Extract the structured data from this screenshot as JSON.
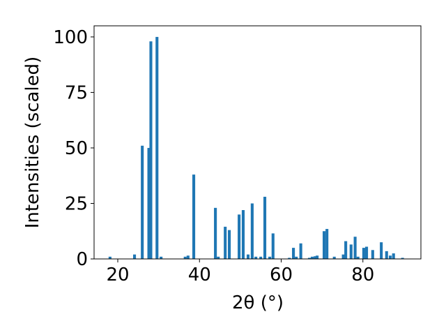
{
  "chart_data": {
    "type": "bar",
    "xlabel": "2θ (°)",
    "ylabel": "Intensities (scaled)",
    "x": [
      18.1,
      24.1,
      26.0,
      27.6,
      28.1,
      29.6,
      30.6,
      36.5,
      37.2,
      38.6,
      43.9,
      44.6,
      46.3,
      47.3,
      49.7,
      50.7,
      51.9,
      52.9,
      53.8,
      55.0,
      56.0,
      57.2,
      58.0,
      62.0,
      63.0,
      63.7,
      64.8,
      66.9,
      67.6,
      68.3,
      68.8,
      70.5,
      71.2,
      73.0,
      75.2,
      75.8,
      77.1,
      78.1,
      78.8,
      80.2,
      80.9,
      82.4,
      84.5,
      85.8,
      86.7,
      87.5,
      89.7
    ],
    "values": [
      1,
      2,
      51,
      50,
      98,
      100,
      1,
      1,
      1.5,
      38,
      23,
      1,
      14.5,
      13,
      20,
      22,
      2,
      25,
      1,
      1,
      28,
      1,
      11.5,
      0.5,
      5,
      1,
      7,
      0.5,
      1,
      1.2,
      1.5,
      12.5,
      13.5,
      1,
      2,
      8,
      6.5,
      10,
      1,
      5,
      5.5,
      4,
      7.5,
      3.5,
      1.5,
      2.5,
      0.5
    ],
    "color": "#1f77b4",
    "xlim": [
      14.2,
      94.2
    ],
    "xticks": [
      20,
      40,
      60,
      80
    ],
    "ylim": [
      0,
      105
    ],
    "yticks": [
      0,
      25,
      50,
      75,
      100
    ]
  }
}
